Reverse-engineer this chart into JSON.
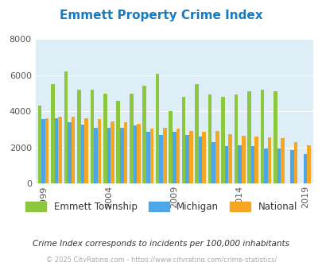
{
  "title": "Emmett Property Crime Index",
  "title_color": "#1a7abf",
  "subtitle": "Crime Index corresponds to incidents per 100,000 inhabitants",
  "footer": "© 2025 CityRating.com - https://www.cityrating.com/crime-statistics/",
  "years": [
    1999,
    2000,
    2001,
    2002,
    2003,
    2004,
    2005,
    2006,
    2007,
    2008,
    2009,
    2010,
    2011,
    2012,
    2013,
    2014,
    2015,
    2016,
    2017,
    2018,
    2019
  ],
  "emmett": [
    4300,
    5500,
    6200,
    5200,
    5200,
    5000,
    4600,
    5000,
    5400,
    6100,
    4000,
    4800,
    5500,
    4950,
    4800,
    4950,
    5100,
    5200,
    5100,
    null,
    null
  ],
  "michigan": [
    3550,
    3600,
    3400,
    3250,
    3100,
    3100,
    3100,
    3200,
    2850,
    2700,
    2850,
    2700,
    2600,
    2300,
    2050,
    2100,
    2050,
    1950,
    1950,
    1850,
    1650
  ],
  "national": [
    3600,
    3700,
    3700,
    3600,
    3550,
    3450,
    3400,
    3300,
    3050,
    3100,
    3050,
    2900,
    2850,
    2900,
    2750,
    2650,
    2600,
    2550,
    2500,
    2300,
    2100
  ],
  "bar_width": 0.28,
  "colors": {
    "emmett": "#8dc63f",
    "michigan": "#4da6e8",
    "national": "#f5a623"
  },
  "ylim": [
    0,
    8000
  ],
  "yticks": [
    0,
    2000,
    4000,
    6000,
    8000
  ],
  "plot_bg": "#ddeef7",
  "fig_bg": "#ffffff",
  "grid_color": "#ffffff",
  "legend_labels": [
    "Emmett Township",
    "Michigan",
    "National"
  ],
  "tick_years": [
    1999,
    2004,
    2009,
    2014,
    2019
  ]
}
